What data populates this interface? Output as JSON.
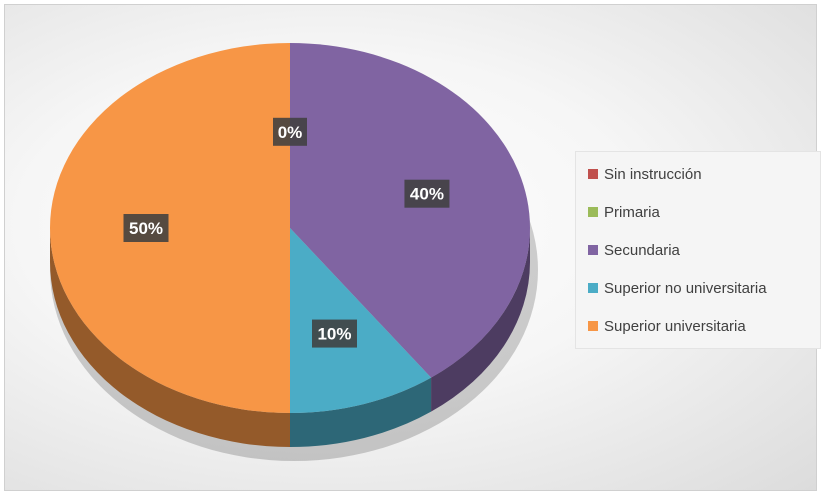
{
  "chart_data": {
    "type": "pie",
    "categories": [
      "Sin instrucción",
      "Primaria",
      "Secundaria",
      "Superior no universitaria",
      "Superior universitaria"
    ],
    "values": [
      0,
      0,
      40,
      10,
      50
    ],
    "data_labels": [
      "0%",
      "",
      "40%",
      "10%",
      "50%"
    ],
    "colors": [
      "#C0504D",
      "#9BBB59",
      "#8064A2",
      "#4BACC6",
      "#F79646"
    ],
    "legend_position": "right",
    "style": "3d"
  }
}
